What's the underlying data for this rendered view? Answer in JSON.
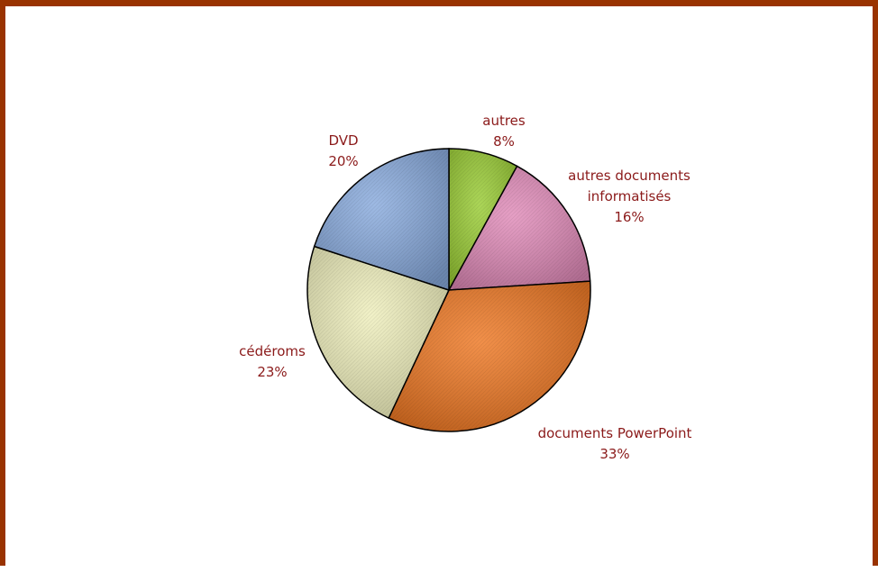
{
  "chart_data": {
    "type": "pie",
    "title": "",
    "slices": [
      {
        "label": "autres",
        "value": 8,
        "percent_label": "8%",
        "color": "#99cc33"
      },
      {
        "label": "autres documents informatisés",
        "label_lines": [
          "autres documents",
          "informatisés"
        ],
        "value": 16,
        "percent_label": "16%",
        "color": "#e08ab8"
      },
      {
        "label": "documents PowerPoint",
        "value": 33,
        "percent_label": "33%",
        "color": "#ee7722"
      },
      {
        "label": "cédéroms",
        "value": 23,
        "percent_label": "23%",
        "color": "#eeeebb"
      },
      {
        "label": "DVD",
        "value": 20,
        "percent_label": "20%",
        "color": "#88aadd"
      }
    ]
  },
  "colors": {
    "frame": "#993300",
    "label_text": "#8b1a1a",
    "slice_outline": "#000000"
  }
}
